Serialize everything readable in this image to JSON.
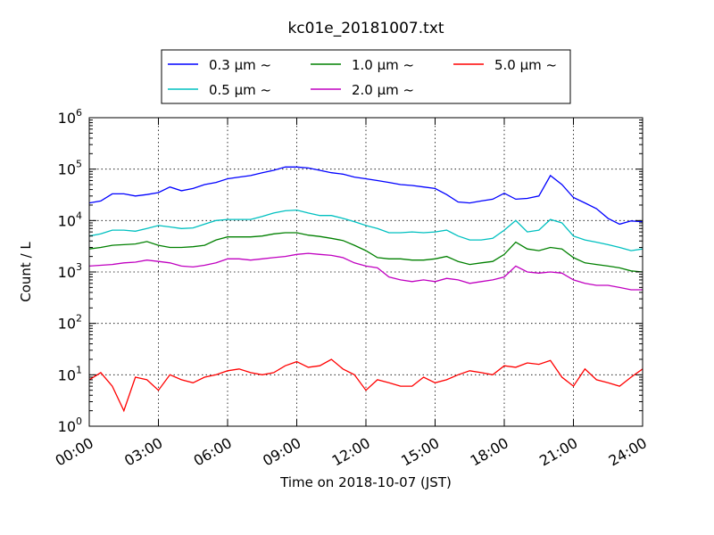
{
  "chart_data": {
    "type": "line",
    "title": "kc01e_20181007.txt",
    "xlabel": "Time on 2018-10-07 (JST)",
    "ylabel": "Count / L",
    "yscale": "log",
    "xlim": [
      0,
      24
    ],
    "ylim": [
      1,
      1000000
    ],
    "grid": true,
    "legend_position": "top-center",
    "x_tick_labels": [
      "00:00",
      "03:00",
      "06:00",
      "09:00",
      "12:00",
      "15:00",
      "18:00",
      "21:00",
      "24:00"
    ],
    "y_tick_labels": [
      {
        "base": "10",
        "exp": "0"
      },
      {
        "base": "10",
        "exp": "1"
      },
      {
        "base": "10",
        "exp": "2"
      },
      {
        "base": "10",
        "exp": "3"
      },
      {
        "base": "10",
        "exp": "4"
      },
      {
        "base": "10",
        "exp": "5"
      },
      {
        "base": "10",
        "exp": "6"
      }
    ],
    "x": [
      0,
      0.5,
      1,
      1.5,
      2,
      2.5,
      3,
      3.5,
      4,
      4.5,
      5,
      5.5,
      6,
      6.5,
      7,
      7.5,
      8,
      8.5,
      9,
      9.5,
      10,
      10.5,
      11,
      11.5,
      12,
      12.5,
      13,
      13.5,
      14,
      14.5,
      15,
      15.5,
      16,
      16.5,
      17,
      17.5,
      18,
      18.5,
      19,
      19.5,
      20,
      20.5,
      21,
      21.5,
      22,
      22.5,
      23,
      23.5,
      24
    ],
    "series": [
      {
        "name": "0.3 μm ~",
        "color": "#0000ff",
        "values": [
          22000,
          24000,
          33000,
          33000,
          30000,
          32000,
          35000,
          45000,
          38000,
          42000,
          50000,
          55000,
          65000,
          70000,
          75000,
          85000,
          95000,
          110000,
          110000,
          105000,
          95000,
          85000,
          80000,
          70000,
          65000,
          60000,
          55000,
          50000,
          48000,
          45000,
          42000,
          32000,
          23000,
          22000,
          24000,
          26000,
          34000,
          26000,
          27000,
          30000,
          75000,
          50000,
          28000,
          22000,
          17000,
          11000,
          8500,
          9800,
          9500
        ]
      },
      {
        "name": "0.5 μm ~",
        "color": "#00c0c0",
        "values": [
          5000,
          5500,
          6500,
          6500,
          6200,
          7000,
          8000,
          7500,
          7000,
          7200,
          8500,
          10000,
          10500,
          10500,
          10500,
          12000,
          14000,
          15500,
          16000,
          14000,
          12500,
          12500,
          11000,
          9500,
          8000,
          7000,
          5800,
          5800,
          6000,
          5800,
          6000,
          6500,
          5000,
          4200,
          4200,
          4500,
          6500,
          10000,
          6000,
          6500,
          10500,
          9000,
          5000,
          4200,
          3800,
          3400,
          3000,
          2600,
          2800
        ]
      },
      {
        "name": "1.0 μm ~",
        "color": "#008000",
        "values": [
          2800,
          3000,
          3300,
          3400,
          3500,
          3900,
          3300,
          3000,
          3000,
          3100,
          3300,
          4200,
          4800,
          4800,
          4800,
          5000,
          5500,
          5800,
          5800,
          5200,
          4900,
          4500,
          4100,
          3300,
          2600,
          1900,
          1800,
          1800,
          1700,
          1700,
          1800,
          2000,
          1600,
          1400,
          1500,
          1600,
          2200,
          3800,
          2800,
          2600,
          3000,
          2800,
          1900,
          1500,
          1400,
          1300,
          1200,
          1050,
          1000
        ]
      },
      {
        "name": "2.0 μm ~",
        "color": "#c000c0",
        "values": [
          1300,
          1350,
          1400,
          1500,
          1550,
          1700,
          1600,
          1500,
          1300,
          1250,
          1350,
          1500,
          1800,
          1800,
          1700,
          1800,
          1900,
          2000,
          2200,
          2300,
          2200,
          2100,
          1900,
          1500,
          1300,
          1200,
          800,
          700,
          650,
          700,
          650,
          750,
          700,
          600,
          650,
          700,
          800,
          1300,
          1000,
          950,
          1000,
          950,
          700,
          600,
          550,
          550,
          500,
          450,
          450
        ]
      },
      {
        "name": "5.0 μm ~",
        "color": "#ff0000",
        "values": [
          8,
          11,
          6,
          2,
          9,
          8,
          5,
          10,
          8,
          7,
          9,
          10,
          12,
          13,
          11,
          10,
          11,
          15,
          18,
          14,
          15,
          20,
          13,
          10,
          5,
          8,
          7,
          6,
          6,
          9,
          7,
          8,
          10,
          12,
          11,
          10,
          15,
          14,
          17,
          16,
          19,
          9,
          6,
          13,
          8,
          7,
          6,
          9,
          13
        ]
      }
    ]
  }
}
